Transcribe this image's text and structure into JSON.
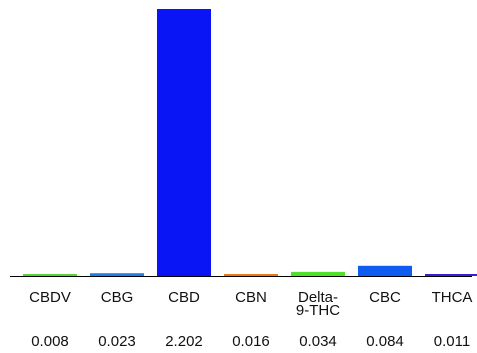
{
  "chart_data": {
    "type": "bar",
    "categories": [
      [
        "CBDV"
      ],
      [
        "CBG"
      ],
      [
        "CBD"
      ],
      [
        "CBN"
      ],
      [
        "Delta-",
        "9-THC"
      ],
      [
        "CBC"
      ],
      [
        "THCA"
      ]
    ],
    "values": [
      0.008,
      0.023,
      2.202,
      0.016,
      0.034,
      0.084,
      0.011
    ],
    "value_labels": [
      "0.008",
      "0.023",
      "2.202",
      "0.016",
      "0.034",
      "0.084",
      "0.011"
    ],
    "colors": [
      "#5bd13c",
      "#1f7ee8",
      "#0a15f5",
      "#e87a1a",
      "#4fe02a",
      "#0f5cf0",
      "#3a1fd8"
    ],
    "baseline_color": "#000000",
    "ylim": [
      0,
      2.202
    ],
    "title": "",
    "xlabel": "",
    "ylabel": "",
    "grid": false,
    "legend": "none"
  }
}
